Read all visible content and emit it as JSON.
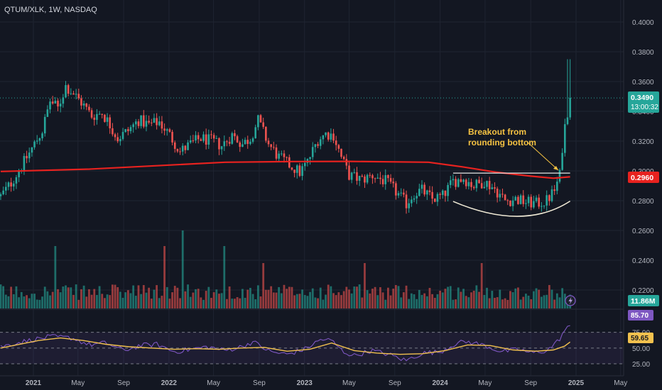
{
  "header": {
    "symbol_line": "QTUM/XLK, 1W, NASDAQ"
  },
  "colors": {
    "background": "#131722",
    "up": "#26a69a",
    "down": "#ef5350",
    "ma": "#e8221f",
    "rsi": "#7e57c2",
    "rsi_ma": "#f2c14e",
    "annotation": "#f5c242",
    "price_badge": "#26a69a",
    "ma_badge": "#e8221f",
    "volume_badge": "#26a69a",
    "rsi_badge": "#7e57c2",
    "rsi_ma_badge": "#f2c14e"
  },
  "badges": {
    "price": "0.3490",
    "countdown": "13:00:32",
    "ma": "0.2960",
    "volume": "11.86M",
    "rsi": "85.70",
    "rsi_ma": "59.65"
  },
  "annotation": {
    "line1": "Breakout from",
    "line2": "rounding bottom"
  },
  "chart_data": {
    "type": "candlestick",
    "title": "QTUM/XLK, 1W, NASDAQ",
    "interval": "1W",
    "price_axis": {
      "ylim": [
        0.2,
        0.41
      ],
      "ticks": [
        "0.4000",
        "0.3800",
        "0.3600",
        "0.3400",
        "0.3200",
        "0.3000",
        "0.2800",
        "0.2600",
        "0.2400",
        "0.2200"
      ]
    },
    "x_axis": {
      "range": [
        "2020-10-05",
        "2025-05-26"
      ],
      "ticks": [
        {
          "date": "2021-01-01",
          "label": "2021",
          "bold": true
        },
        {
          "date": "2021-05-01",
          "label": "May",
          "bold": false
        },
        {
          "date": "2021-09-01",
          "label": "Sep",
          "bold": false
        },
        {
          "date": "2022-01-01",
          "label": "2022",
          "bold": true
        },
        {
          "date": "2022-05-01",
          "label": "May",
          "bold": false
        },
        {
          "date": "2022-09-01",
          "label": "Sep",
          "bold": false
        },
        {
          "date": "2023-01-01",
          "label": "2023",
          "bold": true
        },
        {
          "date": "2023-05-01",
          "label": "May",
          "bold": false
        },
        {
          "date": "2023-09-01",
          "label": "Sep",
          "bold": false
        },
        {
          "date": "2024-01-01",
          "label": "2024",
          "bold": true
        },
        {
          "date": "2024-05-01",
          "label": "May",
          "bold": false
        },
        {
          "date": "2024-09-01",
          "label": "Sep",
          "bold": false
        },
        {
          "date": "2025-01-01",
          "label": "2025",
          "bold": true
        },
        {
          "date": "2025-05-01",
          "label": "May",
          "bold": false
        }
      ]
    },
    "close_path": [
      [
        "2020-10-05",
        0.283
      ],
      [
        "2020-11-02",
        0.292
      ],
      [
        "2020-12-07",
        0.306
      ],
      [
        "2021-01-04",
        0.318
      ],
      [
        "2021-01-25",
        0.327
      ],
      [
        "2021-02-15",
        0.347
      ],
      [
        "2021-03-08",
        0.342
      ],
      [
        "2021-03-29",
        0.357
      ],
      [
        "2021-04-19",
        0.352
      ],
      [
        "2021-05-10",
        0.346
      ],
      [
        "2021-06-07",
        0.337
      ],
      [
        "2021-07-05",
        0.339
      ],
      [
        "2021-07-26",
        0.331
      ],
      [
        "2021-08-16",
        0.322
      ],
      [
        "2021-09-13",
        0.327
      ],
      [
        "2021-10-11",
        0.334
      ],
      [
        "2021-11-08",
        0.331
      ],
      [
        "2021-12-06",
        0.333
      ],
      [
        "2022-01-03",
        0.324
      ],
      [
        "2022-01-31",
        0.313
      ],
      [
        "2022-02-28",
        0.318
      ],
      [
        "2022-03-28",
        0.322
      ],
      [
        "2022-04-25",
        0.32
      ],
      [
        "2022-05-23",
        0.317
      ],
      [
        "2022-06-20",
        0.324
      ],
      [
        "2022-07-18",
        0.318
      ],
      [
        "2022-08-08",
        0.322
      ],
      [
        "2022-08-29",
        0.334
      ],
      [
        "2022-09-26",
        0.318
      ],
      [
        "2022-10-24",
        0.309
      ],
      [
        "2022-11-21",
        0.304
      ],
      [
        "2022-12-19",
        0.299
      ],
      [
        "2023-01-09",
        0.306
      ],
      [
        "2023-02-06",
        0.321
      ],
      [
        "2023-02-27",
        0.325
      ],
      [
        "2023-03-20",
        0.324
      ],
      [
        "2023-04-10",
        0.309
      ],
      [
        "2023-05-01",
        0.297
      ],
      [
        "2023-06-05",
        0.294
      ],
      [
        "2023-07-03",
        0.297
      ],
      [
        "2023-08-07",
        0.293
      ],
      [
        "2023-09-04",
        0.286
      ],
      [
        "2023-10-02",
        0.278
      ],
      [
        "2023-10-23",
        0.285
      ],
      [
        "2023-11-13",
        0.287
      ],
      [
        "2023-12-11",
        0.281
      ],
      [
        "2024-01-08",
        0.283
      ],
      [
        "2024-02-05",
        0.293
      ],
      [
        "2024-03-04",
        0.295
      ],
      [
        "2024-04-01",
        0.29
      ],
      [
        "2024-04-29",
        0.293
      ],
      [
        "2024-05-27",
        0.288
      ],
      [
        "2024-06-24",
        0.28
      ],
      [
        "2024-07-22",
        0.281
      ],
      [
        "2024-08-19",
        0.279
      ],
      [
        "2024-09-16",
        0.278
      ],
      [
        "2024-10-14",
        0.28
      ],
      [
        "2024-11-04",
        0.287
      ],
      [
        "2024-11-18",
        0.297
      ],
      [
        "2024-11-25",
        0.316
      ],
      [
        "2024-12-02",
        0.33
      ],
      [
        "2024-12-09",
        0.34
      ],
      [
        "2024-12-16",
        0.349
      ]
    ],
    "moving_average": [
      [
        "2020-10-05",
        0.2996
      ],
      [
        "2021-06-01",
        0.3012
      ],
      [
        "2022-01-01",
        0.3039
      ],
      [
        "2022-06-01",
        0.3058
      ],
      [
        "2022-12-01",
        0.3063
      ],
      [
        "2023-05-01",
        0.3064
      ],
      [
        "2023-12-01",
        0.3058
      ],
      [
        "2024-03-01",
        0.3027
      ],
      [
        "2024-06-01",
        0.2991
      ],
      [
        "2024-09-01",
        0.2965
      ],
      [
        "2024-11-01",
        0.2951
      ],
      [
        "2024-12-16",
        0.296
      ]
    ],
    "annotations": {
      "text": "Breakout from rounding bottom",
      "rounding_bottom_arc": [
        [
          "2024-02-05",
          0.2795
        ],
        [
          "2024-08-12",
          0.2695
        ],
        [
          "2024-12-16",
          0.2797
        ]
      ],
      "resistance_line": {
        "from": "2024-02-05",
        "to": "2024-12-16",
        "value": 0.2985
      }
    },
    "last_price": 0.349,
    "last_ma": 0.296,
    "last_volume": "11.86M",
    "rsi_panel": {
      "levels": [
        "75.00",
        "50.00",
        "25.00"
      ],
      "ylim": [
        20,
        90
      ],
      "rsi_value": 85.7,
      "rsi_ma_value": 59.65,
      "rsi_path": [
        [
          "2020-10-05",
          52
        ],
        [
          "2020-12-01",
          60
        ],
        [
          "2021-02-15",
          68
        ],
        [
          "2021-04-15",
          66
        ],
        [
          "2021-06-01",
          55
        ],
        [
          "2021-07-15",
          58
        ],
        [
          "2021-09-01",
          46
        ],
        [
          "2021-10-15",
          54
        ],
        [
          "2021-12-01",
          56
        ],
        [
          "2022-01-15",
          44
        ],
        [
          "2022-03-01",
          48
        ],
        [
          "2022-04-15",
          52
        ],
        [
          "2022-06-01",
          46
        ],
        [
          "2022-07-15",
          52
        ],
        [
          "2022-08-15",
          60
        ],
        [
          "2022-10-01",
          44
        ],
        [
          "2022-11-15",
          40
        ],
        [
          "2023-01-01",
          48
        ],
        [
          "2023-02-15",
          64
        ],
        [
          "2023-03-15",
          62
        ],
        [
          "2023-04-15",
          44
        ],
        [
          "2023-05-15",
          38
        ],
        [
          "2023-07-01",
          46
        ],
        [
          "2023-08-15",
          40
        ],
        [
          "2023-10-01",
          30
        ],
        [
          "2023-11-15",
          42
        ],
        [
          "2024-01-01",
          44
        ],
        [
          "2024-02-15",
          58
        ],
        [
          "2024-03-15",
          60
        ],
        [
          "2024-05-01",
          54
        ],
        [
          "2024-06-15",
          44
        ],
        [
          "2024-08-01",
          48
        ],
        [
          "2024-09-01",
          42
        ],
        [
          "2024-10-15",
          46
        ],
        [
          "2024-11-15",
          62
        ],
        [
          "2024-12-01",
          78
        ],
        [
          "2024-12-16",
          85.7
        ]
      ],
      "rsi_ma_path": [
        [
          "2020-10-05",
          50
        ],
        [
          "2021-01-15",
          62
        ],
        [
          "2021-03-15",
          66
        ],
        [
          "2021-05-15",
          62
        ],
        [
          "2021-07-15",
          56
        ],
        [
          "2021-09-15",
          52
        ],
        [
          "2021-11-15",
          50
        ],
        [
          "2022-01-15",
          48
        ],
        [
          "2022-03-15",
          49
        ],
        [
          "2022-05-15",
          48
        ],
        [
          "2022-07-15",
          50
        ],
        [
          "2022-09-15",
          51
        ],
        [
          "2022-11-15",
          45
        ],
        [
          "2023-01-15",
          48
        ],
        [
          "2023-03-15",
          58
        ],
        [
          "2023-05-15",
          46
        ],
        [
          "2023-07-15",
          42
        ],
        [
          "2023-09-15",
          40
        ],
        [
          "2023-11-15",
          41
        ],
        [
          "2024-01-15",
          46
        ],
        [
          "2024-03-15",
          55
        ],
        [
          "2024-05-15",
          54
        ],
        [
          "2024-07-15",
          47
        ],
        [
          "2024-09-15",
          45
        ],
        [
          "2024-11-01",
          47
        ],
        [
          "2024-12-01",
          53
        ],
        [
          "2024-12-16",
          59.65
        ]
      ]
    },
    "volume": {
      "highlights": [
        [
          "2021-03-01",
          "high"
        ],
        [
          "2021-12-20",
          "high"
        ],
        [
          "2022-02-07",
          "highest"
        ],
        [
          "2022-05-30",
          "high"
        ],
        [
          "2022-09-12",
          "mid"
        ],
        [
          "2023-06-12",
          "mid"
        ],
        [
          "2024-04-22",
          "mid"
        ]
      ]
    }
  }
}
